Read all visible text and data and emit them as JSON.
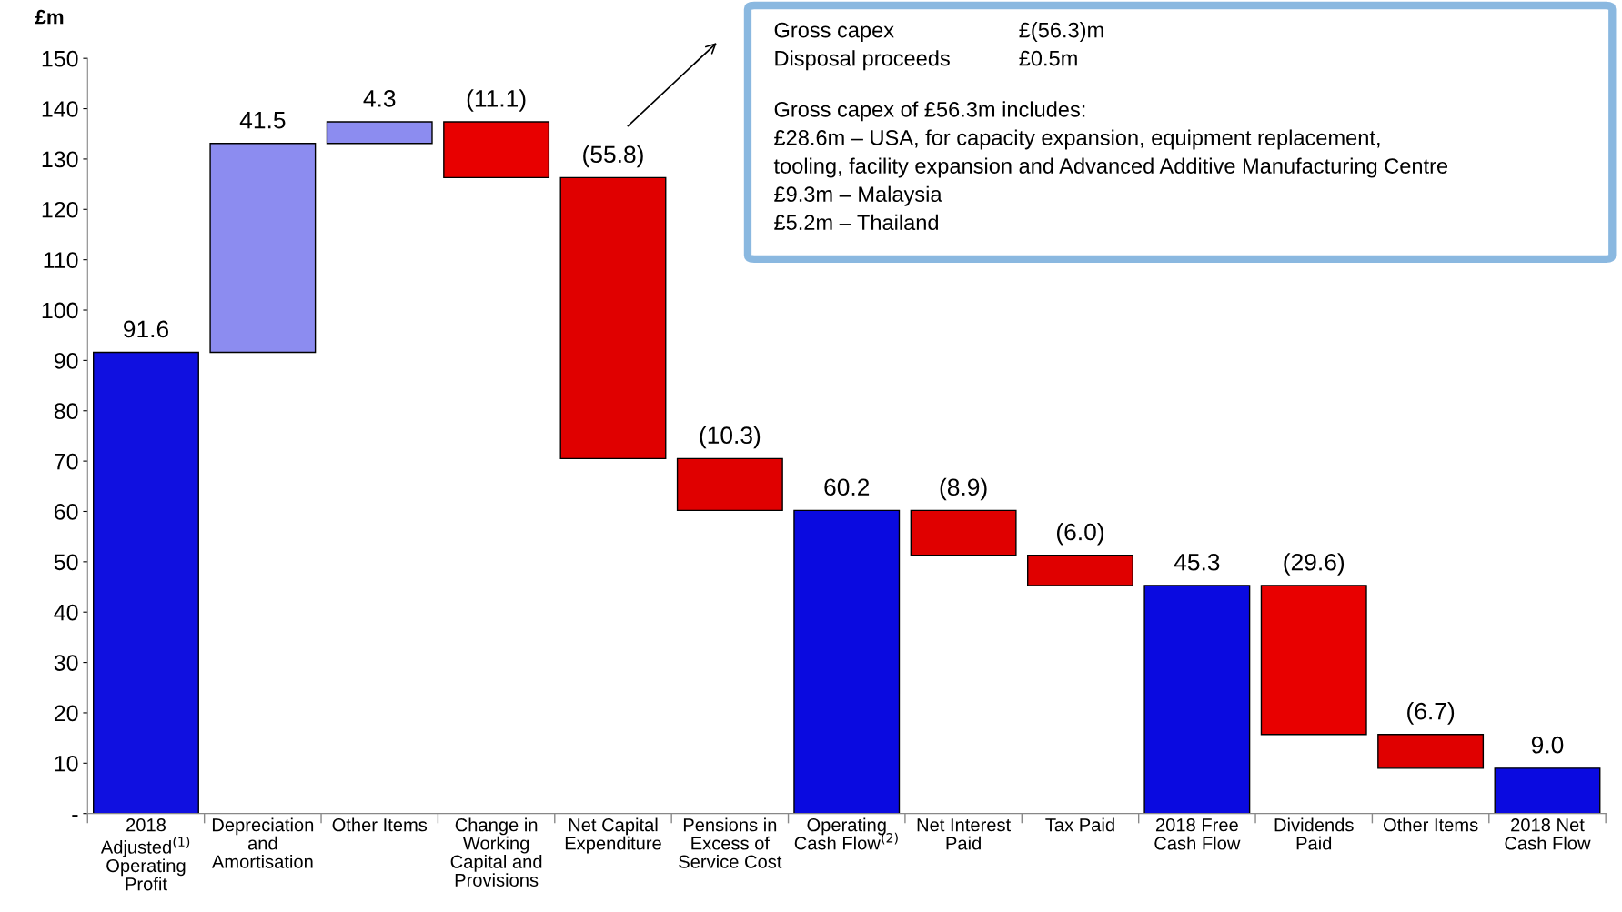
{
  "chart_data": {
    "type": "bar",
    "ylabel": "£m",
    "categories": [
      "2018 Adjusted$^{(1)}$ Operating Profit",
      "Depreciation and Amortisation",
      "Other Items",
      "Change in Working Capital and Provisions",
      "Net Capital Expenditure",
      "Pensions in Excess of Service Cost",
      "Operating Cash Flow$^{(2)}$",
      "Net Interest Paid",
      "Tax Paid",
      "2018 Free Cash Flow",
      "Dividends Paid",
      "Other Items",
      "2018 Net Cash Flow"
    ],
    "values": [
      91.6,
      41.5,
      4.3,
      -11.1,
      -55.8,
      -10.3,
      60.2,
      -8.9,
      -6.0,
      45.3,
      -29.6,
      -6.7,
      9.0
    ],
    "base": [
      0,
      91.6,
      133.1,
      137.4,
      126.3,
      70.5,
      0,
      60.2,
      51.3,
      0,
      45.3,
      15.7,
      0
    ],
    "colors": [
      "#1010e0",
      "#8c8cf0",
      "#8c8cf0",
      "#e80000",
      "#e00000",
      "#e00000",
      "#0a0ae0",
      "#e00000",
      "#e00000",
      "#0a0ae0",
      "#e80000",
      "#e00000",
      "#0a0ae0"
    ],
    "value_labels": [
      "91.6",
      "41.5",
      "4.3",
      "(11.1)",
      "(55.8)",
      "(10.3)",
      "60.2",
      "(8.9)",
      "(6.0)",
      "45.3",
      "(29.6)",
      "(6.7)",
      "9.0"
    ],
    "ylim": [
      0,
      150
    ],
    "yticks": [
      {
        "value": 0,
        "label": "-"
      },
      10,
      20,
      30,
      40,
      50,
      60,
      70,
      80,
      90,
      100,
      110,
      120,
      130,
      140,
      150
    ],
    "grid": false,
    "annotations": [
      "Gross capex",
      "£(56.3)m",
      "Disposal proceeds",
      "£0.5m",
      "Gross capex of £56.3m includes:",
      "£28.6m – USA, for capacity expansion, equipment replacement,",
      "tooling, facility expansion and Advanced Additive Manufacturing Centre",
      "£9.3m – Malaysia",
      "£5.2m – Thailand"
    ]
  }
}
